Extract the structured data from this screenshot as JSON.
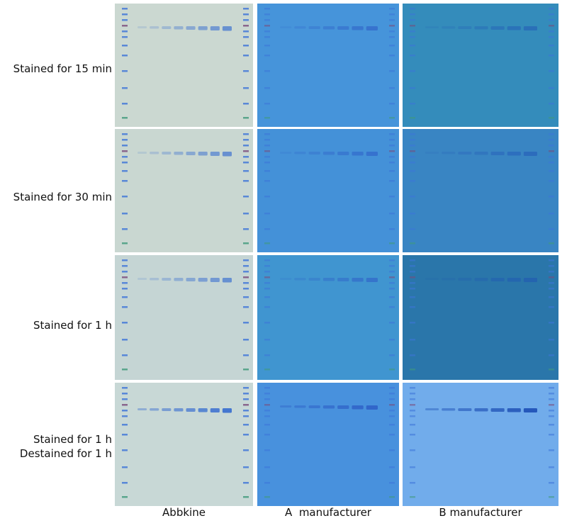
{
  "rows": [
    {
      "label_lines": [
        "Stained for 15 min"
      ]
    },
    {
      "label_lines": [
        "Stained for 30 min"
      ]
    },
    {
      "label_lines": [
        "Stained for 1 h"
      ]
    },
    {
      "label_lines": [
        "Stained for 1 h",
        "Destained for 1 h"
      ]
    }
  ],
  "columns": [
    {
      "label": "Abbkine"
    },
    {
      "label": "A  manufacturer"
    },
    {
      "label": "B manufacturer"
    }
  ],
  "gel_colors": [
    [
      "#c9d6cf",
      "#3d8fd9",
      "#2a86b8"
    ],
    [
      "#c7d5cf",
      "#3a8cd6",
      "#2f7fc0"
    ],
    [
      "#c2d3d2",
      "#3690ce",
      "#1f6fa6"
    ],
    [
      "#c6d6d4",
      "#3f8cdc",
      "#6aa8ea"
    ]
  ],
  "band_colors": [
    "#3a6fd0",
    "#2f62c8",
    "#1e4fb5"
  ],
  "ladder_top_color": "#7a4a7a",
  "ladder_color": "#3d74d8",
  "ladder_bottom_color": "#3f9a7a"
}
